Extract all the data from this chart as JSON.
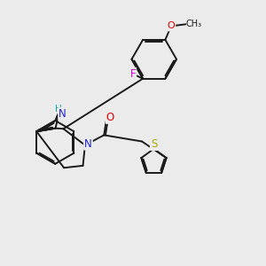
{
  "bg_color": "#ebebeb",
  "bond_color": "#1a1a1a",
  "atom_colors": {
    "N": "#2222cc",
    "NH": "#00aaaa",
    "O": "#dd0000",
    "F": "#cc00cc",
    "S": "#aaaa00",
    "C": "#1a1a1a"
  },
  "bond_lw": 1.4,
  "fig_size": [
    3.0,
    3.0
  ],
  "dpi": 100
}
